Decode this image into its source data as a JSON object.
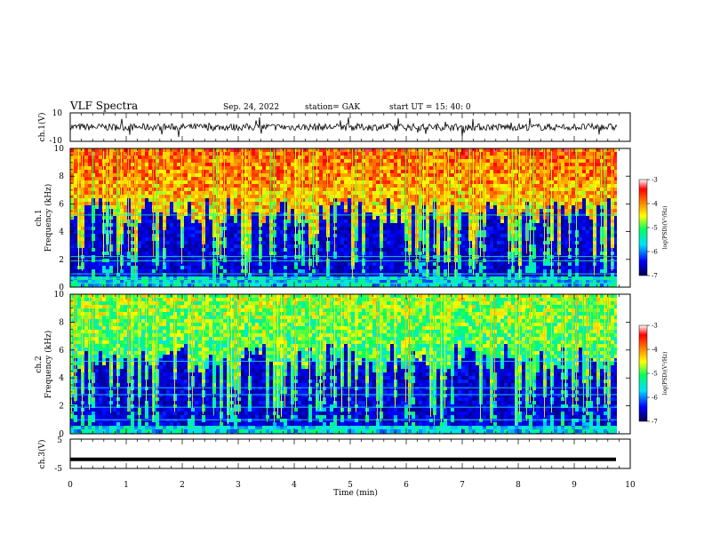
{
  "header": {
    "title": "VLF Spectra",
    "date": "Sep. 24, 2022",
    "station": "station= GAK",
    "start": "start  UT  =   15: 40: 0"
  },
  "chart_data": [
    {
      "type": "line",
      "ylabel": "ch.1(V)",
      "ylim": [
        -10,
        10
      ],
      "yticks": [
        "10",
        "-10"
      ],
      "xlim": [
        0,
        10
      ],
      "noise_amplitude_v": 2.5
    },
    {
      "type": "heatmap",
      "ylabel": "Frequency (kHz)",
      "channel": "ch.1",
      "ylim": [
        0,
        10
      ],
      "yticks": [
        "0",
        "2",
        "4",
        "6",
        "8",
        "10"
      ],
      "xlim": [
        0,
        10
      ],
      "colorbar": {
        "label": "log(PSD)(V²/Hz)",
        "ticks": [
          "-3",
          "-4",
          "-5",
          "-6",
          "-7"
        ],
        "range": [
          -7,
          -3
        ],
        "colors": [
          "#000050",
          "#0000ff",
          "#00e0ff",
          "#00ff60",
          "#ffff00",
          "#ff8000",
          "#ff0000",
          "#ffffff"
        ]
      },
      "spectral_lines_khz": [
        0.3,
        0.6,
        0.95,
        1.9,
        2.2,
        5.2
      ]
    },
    {
      "type": "heatmap",
      "ylabel": "Frequency (kHz)",
      "channel": "ch.2",
      "ylim": [
        0,
        10
      ],
      "yticks": [
        "0",
        "2",
        "4",
        "6",
        "8",
        "10"
      ],
      "xlim": [
        0,
        10
      ],
      "colorbar": {
        "label": "log(PSD)(V²/Hz)",
        "ticks": [
          "-3",
          "-4",
          "-5",
          "-6",
          "-7"
        ],
        "range": [
          -7,
          -3
        ],
        "colors": [
          "#000050",
          "#0000ff",
          "#00e0ff",
          "#00ff60",
          "#ffff00",
          "#ff8000",
          "#ff0000",
          "#ffffff"
        ]
      },
      "spectral_lines_khz": [
        0.4,
        1.0,
        1.9,
        2.8,
        3.3,
        5.2
      ]
    },
    {
      "type": "line",
      "ylabel": "ch.3(V)",
      "ylim": [
        -5,
        5
      ],
      "yticks": [
        "5",
        "-5"
      ],
      "xlim": [
        0,
        10
      ],
      "constant_value_v": -1.9
    }
  ],
  "xaxis": {
    "label": "Time (min)",
    "ticks": [
      "0",
      "1",
      "2",
      "3",
      "4",
      "5",
      "6",
      "7",
      "8",
      "9",
      "10"
    ]
  }
}
